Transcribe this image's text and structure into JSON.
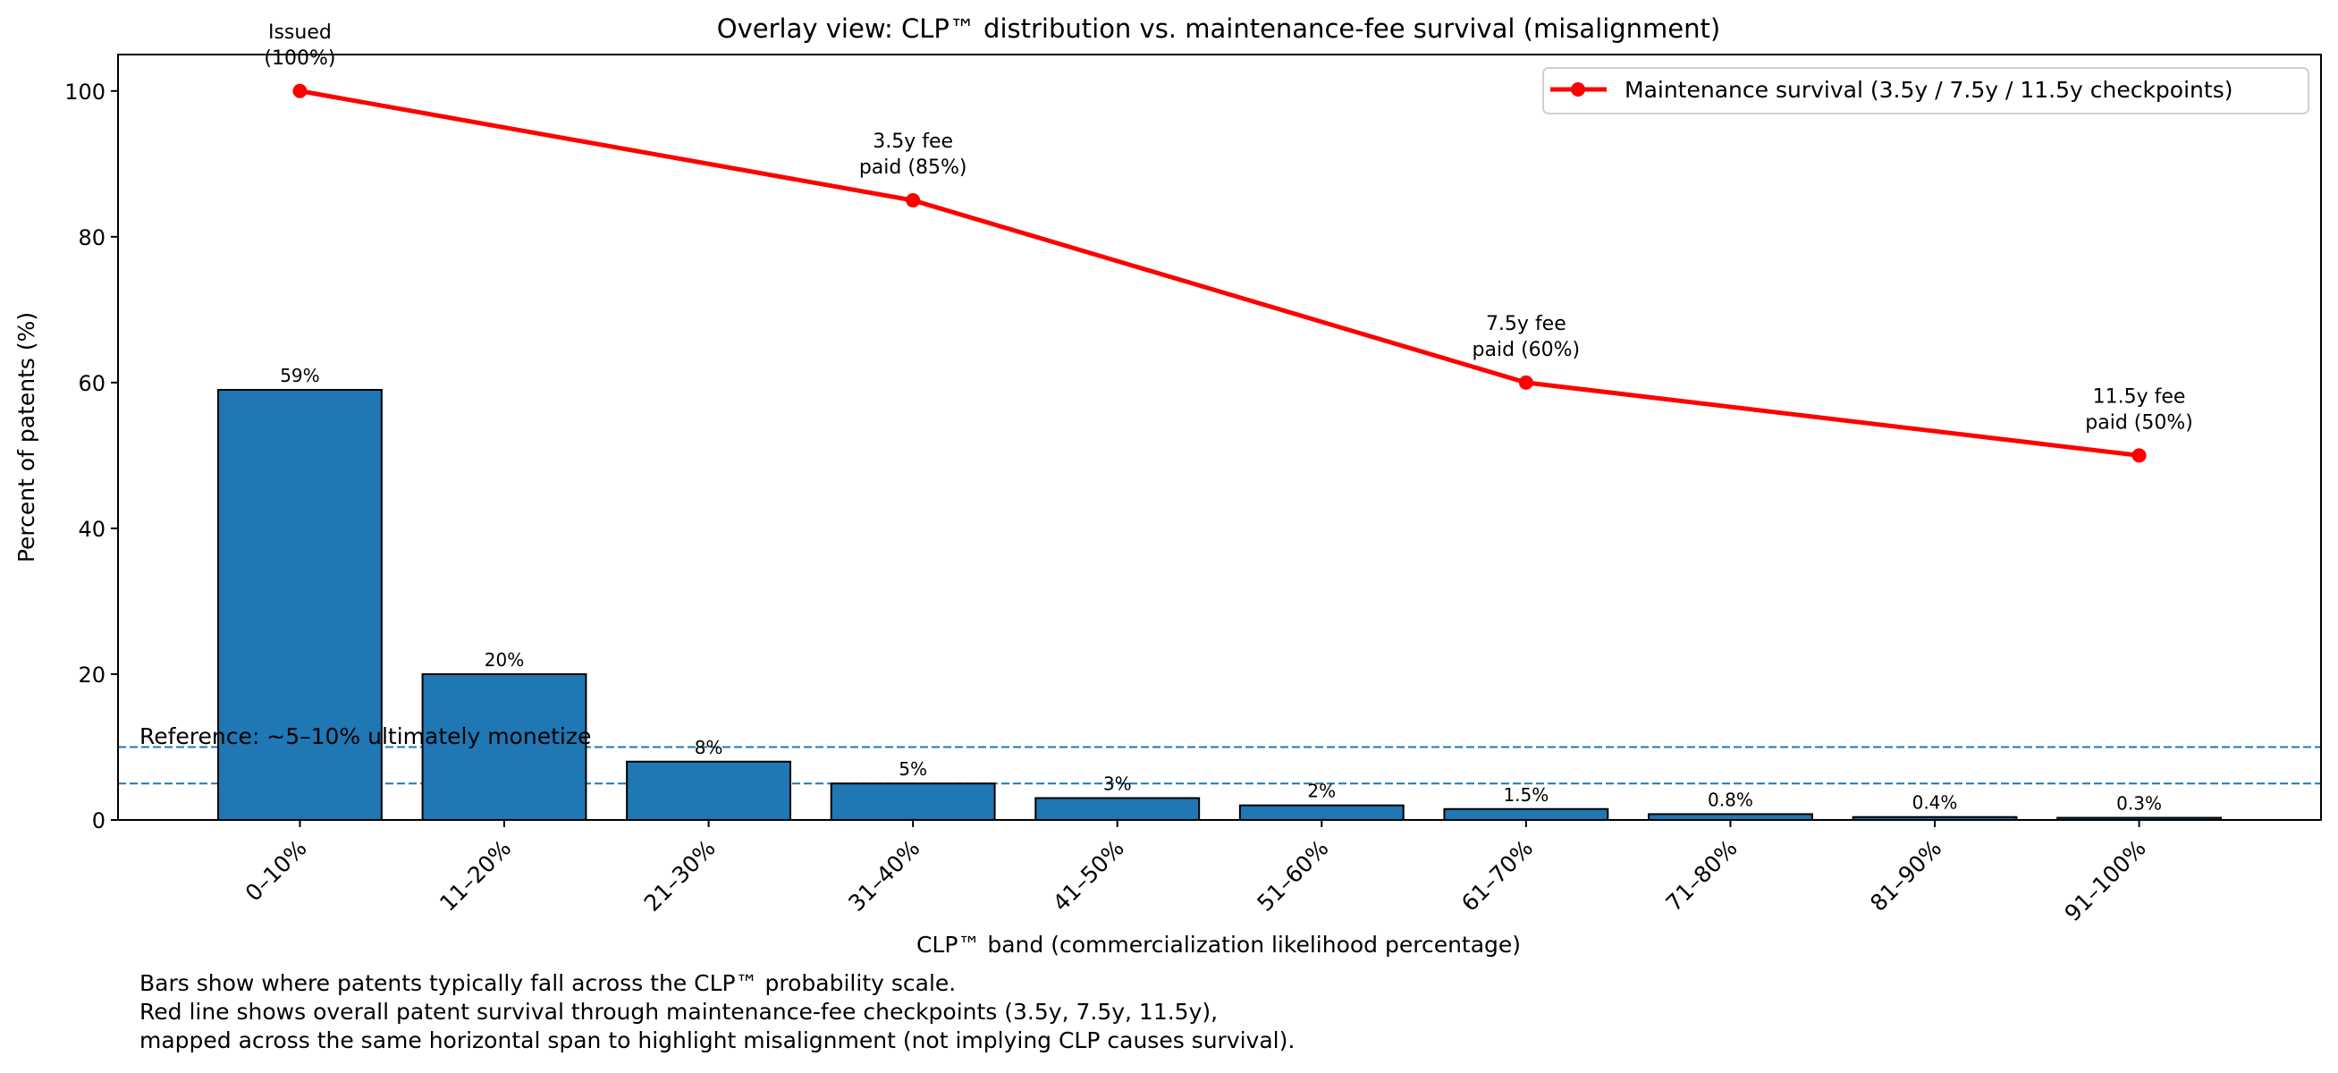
{
  "chart_data": {
    "type": "bar",
    "title": "Overlay view: CLP™ distribution vs. maintenance-fee survival (misalignment)",
    "xlabel": "CLP™ band (commercialization likelihood percentage)",
    "ylabel": "Percent of patents (%)",
    "ylim": [
      0,
      105
    ],
    "yticks": [
      0,
      20,
      40,
      60,
      80,
      100
    ],
    "grid": false,
    "categories": [
      "0–10%",
      "11–20%",
      "21–30%",
      "31–40%",
      "41–50%",
      "51–60%",
      "61–70%",
      "71–80%",
      "81–90%",
      "91–100%"
    ],
    "series": [
      {
        "name": "CLP™ distribution",
        "type": "bar",
        "color": "#1f77b4",
        "values": [
          59,
          20,
          8,
          5,
          3,
          2,
          1.5,
          0.8,
          0.4,
          0.3
        ],
        "labels": [
          "59%",
          "20%",
          "8%",
          "5%",
          "3%",
          "2%",
          "1.5%",
          "0.8%",
          "0.4%",
          "0.3%"
        ]
      },
      {
        "name": "Maintenance survival (3.5y / 7.5y / 11.5y checkpoints)",
        "type": "line",
        "color": "#ff0000",
        "x_index": [
          0,
          3,
          6,
          9
        ],
        "values": [
          100,
          85,
          60,
          50
        ],
        "annotations": [
          [
            "Issued",
            "(100%)"
          ],
          [
            "3.5y fee",
            "paid (85%)"
          ],
          [
            "7.5y fee",
            "paid (60%)"
          ],
          [
            "11.5y fee",
            "paid (50%)"
          ]
        ]
      }
    ],
    "reference_lines": {
      "values": [
        5,
        10
      ],
      "color": "#1f77b4",
      "style": "dashed",
      "label": "Reference: ~5–10% ultimately monetize"
    },
    "legend": {
      "position": "top-right",
      "entries": [
        "Maintenance survival (3.5y / 7.5y / 11.5y checkpoints)"
      ]
    },
    "notes": [
      "Bars show where patents typically fall across the CLP™ probability scale.",
      "Red line shows overall patent survival through maintenance-fee checkpoints (3.5y, 7.5y, 11.5y),",
      "mapped across the same horizontal span to highlight misalignment (not implying CLP causes survival)."
    ]
  }
}
